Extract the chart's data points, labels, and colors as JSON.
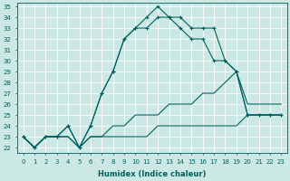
{
  "xlabel": "Humidex (Indice chaleur)",
  "x": [
    0,
    1,
    2,
    3,
    4,
    5,
    6,
    7,
    8,
    9,
    10,
    11,
    12,
    13,
    14,
    15,
    16,
    17,
    18,
    19,
    20,
    21,
    22,
    23
  ],
  "line1": [
    23,
    22,
    23,
    23,
    24,
    22,
    24,
    27,
    29,
    32,
    33,
    34,
    35,
    34,
    34,
    33,
    33,
    33,
    30,
    29,
    25,
    25,
    25,
    25
  ],
  "line2": [
    23,
    22,
    23,
    23,
    24,
    22,
    24,
    27,
    29,
    32,
    33,
    33,
    34,
    34,
    33,
    32,
    32,
    30,
    30,
    29,
    25,
    25,
    25,
    25
  ],
  "line3": [
    23,
    22,
    23,
    23,
    23,
    22,
    23,
    23,
    24,
    24,
    25,
    25,
    25,
    26,
    26,
    26,
    27,
    27,
    28,
    29,
    26,
    26,
    26,
    26
  ],
  "line4": [
    23,
    22,
    23,
    23,
    23,
    22,
    23,
    23,
    23,
    23,
    23,
    23,
    24,
    24,
    24,
    24,
    24,
    24,
    24,
    24,
    25,
    25,
    25,
    25
  ],
  "background_color": "#cce8e4",
  "grid_color": "#b8d8d4",
  "line_color": "#006060",
  "ylim_min": 22,
  "ylim_max": 35,
  "yticks": [
    22,
    23,
    24,
    25,
    26,
    27,
    28,
    29,
    30,
    31,
    32,
    33,
    34,
    35
  ]
}
